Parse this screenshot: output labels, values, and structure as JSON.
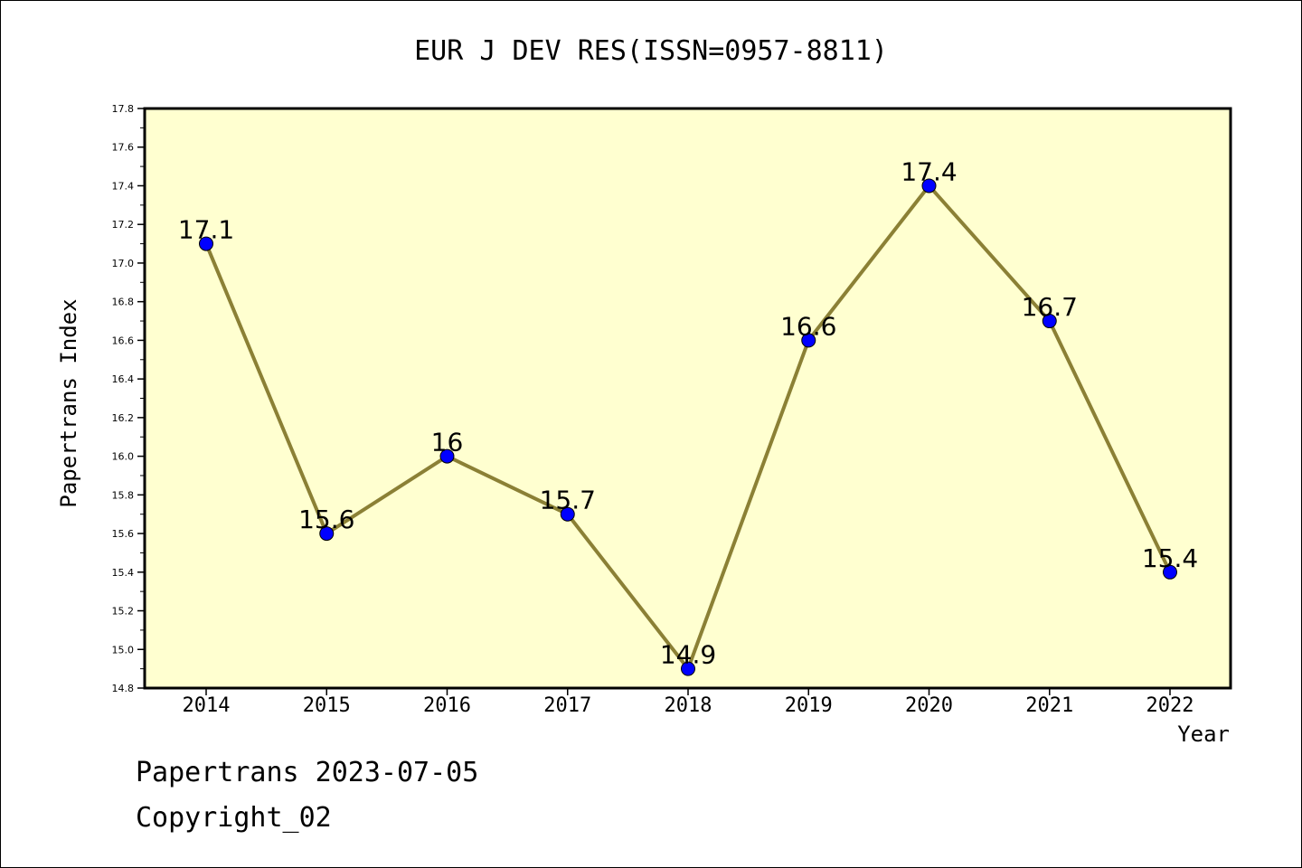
{
  "chart_data": {
    "type": "line",
    "title": "EUR J DEV RES(ISSN=0957-8811)",
    "xlabel": "Year",
    "ylabel": "Papertrans Index",
    "categories": [
      "2014",
      "2015",
      "2016",
      "2017",
      "2018",
      "2019",
      "2020",
      "2021",
      "2022"
    ],
    "values": [
      17.1,
      15.6,
      16,
      15.7,
      14.9,
      16.6,
      17.4,
      16.7,
      15.4
    ],
    "data_labels": [
      "17.1",
      "15.6",
      "16",
      "15.7",
      "14.9",
      "16.6",
      "17.4",
      "16.7",
      "15.4"
    ],
    "ylim": [
      14.8,
      17.8
    ],
    "yticks": [
      "14.8",
      "15.0",
      "15.2",
      "15.4",
      "15.6",
      "15.8",
      "16.0",
      "16.2",
      "16.4",
      "16.6",
      "16.8",
      "17.0",
      "17.2",
      "17.4",
      "17.6",
      "17.8"
    ],
    "grid": false,
    "legend": "none",
    "colors": {
      "plot_background": "#ffffd0",
      "line": "#8b8035",
      "marker": "#0000ff"
    }
  },
  "footer": {
    "line1": "Papertrans 2023-07-05",
    "line2": "Copyright_02"
  }
}
